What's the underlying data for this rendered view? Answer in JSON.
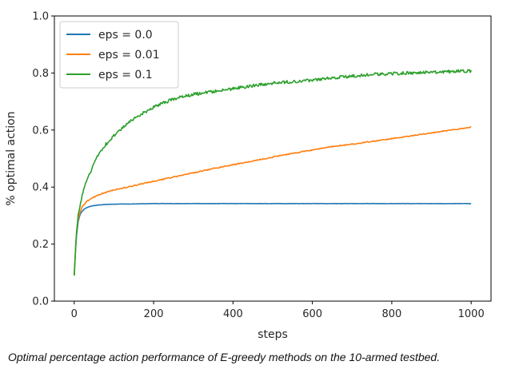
{
  "chart_data": {
    "type": "line",
    "title": "",
    "xlabel": "steps",
    "ylabel": "% optimal action",
    "xlim": [
      -50,
      1050
    ],
    "ylim": [
      0.0,
      1.0
    ],
    "xticks": [
      0,
      200,
      400,
      600,
      800,
      1000
    ],
    "yticks": [
      0.0,
      0.2,
      0.4,
      0.6,
      0.8,
      1.0
    ],
    "xtick_labels": [
      "0",
      "200",
      "400",
      "600",
      "800",
      "1000"
    ],
    "ytick_labels": [
      "0.0",
      "0.2",
      "0.4",
      "0.6",
      "0.8",
      "1.0"
    ],
    "grid": false,
    "legend_position": "top-left",
    "series": [
      {
        "name": "eps = 0.0",
        "color": "#1f77b4",
        "x": [
          0,
          5,
          10,
          15,
          20,
          25,
          30,
          40,
          50,
          60,
          80,
          100,
          150,
          200,
          300,
          400,
          500,
          600,
          700,
          800,
          900,
          1000
        ],
        "values": [
          0.09,
          0.22,
          0.28,
          0.305,
          0.315,
          0.322,
          0.327,
          0.332,
          0.335,
          0.337,
          0.339,
          0.34,
          0.341,
          0.342,
          0.342,
          0.342,
          0.342,
          0.342,
          0.342,
          0.342,
          0.342,
          0.342
        ]
      },
      {
        "name": "eps = 0.01",
        "color": "#ff7f0e",
        "x": [
          0,
          5,
          10,
          15,
          20,
          25,
          30,
          40,
          50,
          60,
          80,
          100,
          150,
          200,
          250,
          300,
          350,
          400,
          450,
          500,
          550,
          600,
          650,
          700,
          750,
          800,
          850,
          900,
          950,
          1000
        ],
        "values": [
          0.09,
          0.23,
          0.29,
          0.315,
          0.33,
          0.34,
          0.348,
          0.357,
          0.365,
          0.372,
          0.382,
          0.39,
          0.405,
          0.42,
          0.435,
          0.45,
          0.465,
          0.478,
          0.492,
          0.505,
          0.518,
          0.53,
          0.542,
          0.55,
          0.56,
          0.57,
          0.58,
          0.59,
          0.6,
          0.61
        ]
      },
      {
        "name": "eps = 0.1",
        "color": "#2ca02c",
        "x": [
          0,
          5,
          10,
          15,
          20,
          25,
          30,
          40,
          50,
          60,
          80,
          100,
          120,
          150,
          175,
          200,
          250,
          300,
          350,
          400,
          450,
          500,
          550,
          600,
          650,
          700,
          750,
          800,
          850,
          900,
          950,
          1000
        ],
        "values": [
          0.09,
          0.23,
          0.3,
          0.34,
          0.37,
          0.395,
          0.415,
          0.45,
          0.48,
          0.51,
          0.55,
          0.58,
          0.605,
          0.64,
          0.66,
          0.68,
          0.71,
          0.725,
          0.735,
          0.745,
          0.755,
          0.765,
          0.77,
          0.775,
          0.783,
          0.79,
          0.795,
          0.798,
          0.8,
          0.803,
          0.805,
          0.807
        ]
      }
    ]
  },
  "caption": "Optimal percentage action performance of E-greedy methods on the 10-armed testbed."
}
